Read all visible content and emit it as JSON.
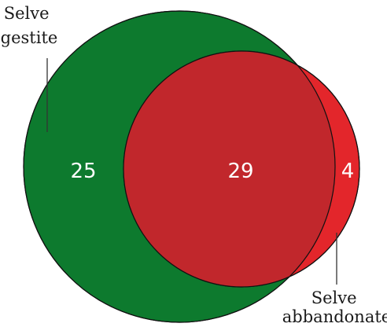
{
  "venn": {
    "sets": [
      {
        "name": "Selve gestite",
        "label_lines": [
          "Selve",
          "gestite"
        ],
        "color": "#0d7a2e"
      },
      {
        "name": "Selve abbandonate",
        "label_lines": [
          "Selve",
          "abbandonate"
        ],
        "color": "#e3262b"
      }
    ],
    "overlap_color": "#c1272c",
    "counts": {
      "gestite_only": "25",
      "both": "29",
      "abbandonate_only": "4"
    }
  }
}
